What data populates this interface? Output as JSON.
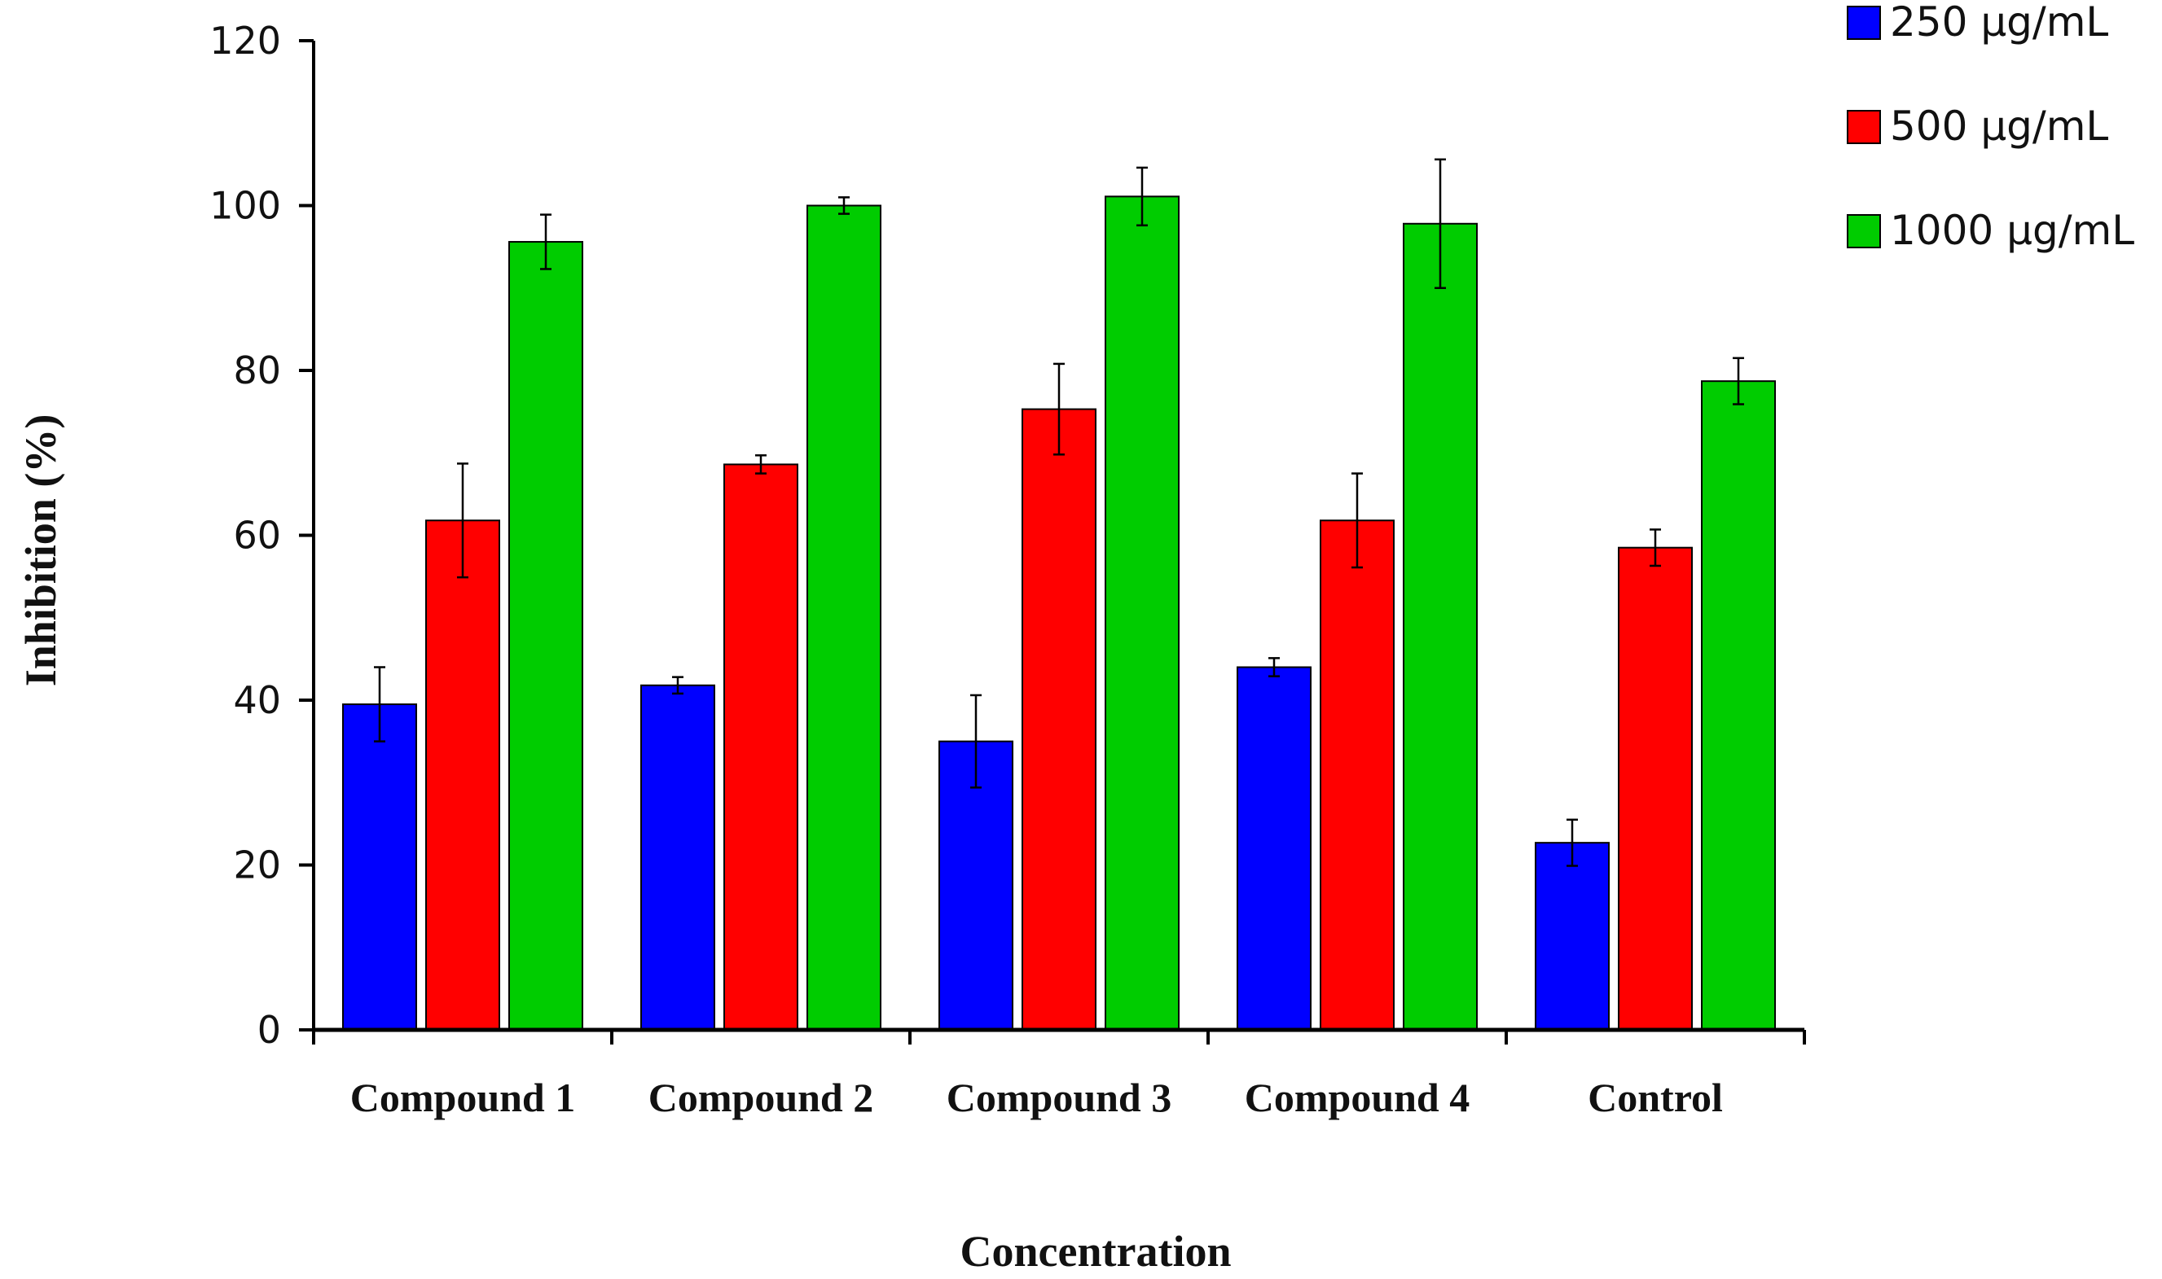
{
  "chart_data": {
    "type": "bar",
    "title": "",
    "xlabel": "Concentration",
    "ylabel": "Inhibition  (%)",
    "ylim": [
      0,
      120
    ],
    "yticks": [
      0,
      20,
      40,
      60,
      80,
      100,
      120
    ],
    "categories": [
      "Compound 1",
      "Compound 2",
      "Compound 3",
      "Compound 4",
      "Control"
    ],
    "legend_position": "top-right",
    "series": [
      {
        "name": "250 μg/mL",
        "color": "#0000FF",
        "values": [
          39.5,
          41.8,
          35.0,
          44.0,
          22.7
        ],
        "errors": [
          4.5,
          1.0,
          5.6,
          1.1,
          2.8
        ]
      },
      {
        "name": "500 μg/mL",
        "color": "#FF0000",
        "values": [
          61.8,
          68.6,
          75.3,
          61.8,
          58.5
        ],
        "errors": [
          6.9,
          1.1,
          5.5,
          5.7,
          2.2
        ]
      },
      {
        "name": "1000 μg/mL",
        "color": "#00CC00",
        "values": [
          95.6,
          100.0,
          101.1,
          97.8,
          78.7
        ],
        "errors": [
          3.3,
          1.0,
          3.5,
          7.8,
          2.8
        ]
      }
    ]
  }
}
